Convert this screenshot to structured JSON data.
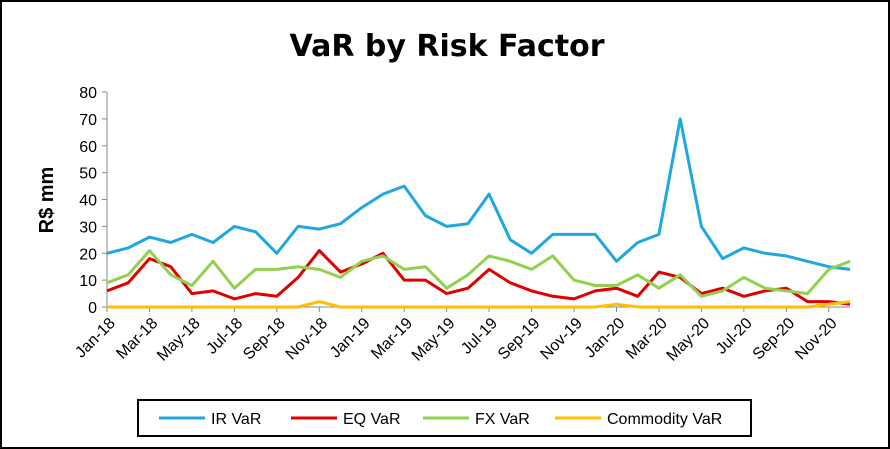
{
  "chart_data": {
    "type": "line",
    "title": "VaR by Risk Factor",
    "xlabel": "",
    "ylabel": "R$ mm",
    "ylim": [
      0,
      80
    ],
    "yticks": [
      "0",
      "10",
      "20",
      "30",
      "40",
      "50",
      "60",
      "70",
      "80"
    ],
    "xticks": [
      "Jan-18",
      "Mar-18",
      "May-18",
      "Jul-18",
      "Sep-18",
      "Nov-18",
      "Jan-19",
      "Mar-19",
      "May-19",
      "Jul-19",
      "Sep-19",
      "Nov-19",
      "Jan-20",
      "Mar-20",
      "May-20",
      "Jul-20",
      "Sep-20",
      "Nov-20"
    ],
    "grid": false,
    "legend_position": "bottom",
    "x": [
      "Jan-18",
      "Feb-18",
      "Mar-18",
      "Apr-18",
      "May-18",
      "Jun-18",
      "Jul-18",
      "Aug-18",
      "Sep-18",
      "Oct-18",
      "Nov-18",
      "Dec-18",
      "Jan-19",
      "Feb-19",
      "Mar-19",
      "Apr-19",
      "May-19",
      "Jun-19",
      "Jul-19",
      "Aug-19",
      "Sep-19",
      "Oct-19",
      "Nov-19",
      "Dec-19",
      "Jan-20",
      "Feb-20",
      "Mar-20",
      "Apr-20",
      "May-20",
      "Jun-20",
      "Jul-20",
      "Aug-20",
      "Sep-20",
      "Oct-20",
      "Nov-20",
      "Dec-20"
    ],
    "series": [
      {
        "name": "IR VaR",
        "color": "#1fa8e0",
        "values": [
          20,
          22,
          26,
          24,
          27,
          24,
          30,
          28,
          20,
          30,
          29,
          31,
          37,
          42,
          45,
          34,
          30,
          31,
          42,
          25,
          20,
          27,
          27,
          27,
          17,
          24,
          27,
          70,
          30,
          18,
          22,
          20,
          19,
          17,
          15,
          14
        ]
      },
      {
        "name": "EQ VaR",
        "color": "#e00000",
        "values": [
          6,
          9,
          18,
          15,
          5,
          6,
          3,
          5,
          4,
          11,
          21,
          13,
          16,
          20,
          10,
          10,
          5,
          7,
          14,
          9,
          6,
          4,
          3,
          6,
          7,
          4,
          13,
          11,
          5,
          7,
          4,
          6,
          7,
          2,
          2,
          1
        ]
      },
      {
        "name": "FX VaR",
        "color": "#92d050",
        "values": [
          9,
          12,
          21,
          12,
          8,
          17,
          7,
          14,
          14,
          15,
          14,
          11,
          17,
          19,
          14,
          15,
          7,
          12,
          19,
          17,
          14,
          19,
          10,
          8,
          8,
          12,
          7,
          12,
          4,
          6,
          11,
          7,
          6,
          5,
          14,
          17
        ]
      },
      {
        "name": "Commodity VaR",
        "color": "#ffc000",
        "values": [
          0,
          0,
          0,
          0,
          0,
          0,
          0,
          0,
          0,
          0,
          2,
          0,
          0,
          0,
          0,
          0,
          0,
          0,
          0,
          0,
          0,
          0,
          0,
          0,
          1,
          0,
          0,
          0,
          0,
          0,
          0,
          0,
          0,
          0,
          1,
          2
        ]
      }
    ]
  }
}
